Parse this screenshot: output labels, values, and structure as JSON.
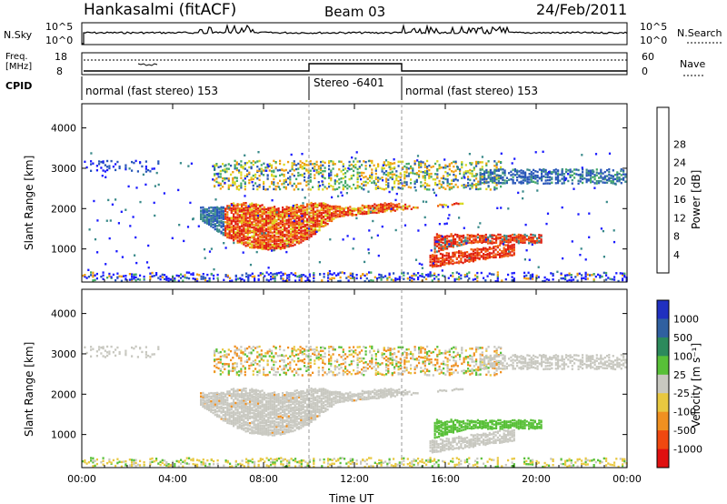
{
  "header": {
    "station": "Hankasalmi (fitACF)",
    "beam": "Beam 03",
    "date": "24/Feb/2011"
  },
  "status_panels": {
    "nsky_label": "N.Sky",
    "nsearch_label": "N.Search",
    "left_ticks": [
      "10^5",
      "10^0"
    ],
    "right_ticks": [
      "10^5",
      "10^0"
    ],
    "freq_label_1": "Freq.",
    "freq_label_2": "[MHz]",
    "freq_ticks": [
      "18",
      "8"
    ],
    "nave_ticks": [
      "60",
      "0"
    ],
    "nave_label": "Nave",
    "cpid_label": "CPID"
  },
  "cpid_segments": [
    {
      "label": "normal (fast stereo) 153",
      "start_h": 0,
      "end_h": 10
    },
    {
      "label": "Stereo -6401",
      "start_h": 10,
      "end_h": 14
    },
    {
      "label": "normal (fast stereo) 153",
      "start_h": 14,
      "end_h": 24
    }
  ],
  "chart_data": [
    {
      "type": "heatmap",
      "quantity": "Power",
      "ylabel": "Slant Range [km]",
      "xlim_hours": [
        0,
        24
      ],
      "ylim": [
        180,
        4600
      ],
      "yticks": [
        1000,
        2000,
        3000,
        4000
      ],
      "colorbar": {
        "label": "Power [dB]",
        "ticks": [
          "4",
          "8",
          "12",
          "16",
          "20",
          "24",
          "28"
        ],
        "colors": [
          "#1a1aff",
          "#2856b8",
          "#3a8a8a",
          "#44aa66",
          "#8cc43c",
          "#d8d820",
          "#f0a010",
          "#f06010",
          "#e02010"
        ]
      }
    },
    {
      "type": "heatmap",
      "quantity": "Velocity",
      "ylabel": "Slant Range [km]",
      "xlabel": "Time UT",
      "xlim_hours": [
        0,
        24
      ],
      "ylim": [
        180,
        4600
      ],
      "yticks": [
        1000,
        2000,
        3000,
        4000
      ],
      "xticks": [
        "00:00",
        "04:00",
        "08:00",
        "12:00",
        "16:00",
        "20:00",
        "00:00"
      ],
      "colorbar": {
        "label": "Velocity [m s⁻¹]",
        "ticks": [
          "1000",
          "500",
          "100",
          "25",
          "-25",
          "-100",
          "-500",
          "-1000"
        ],
        "colors": [
          "#2030c0",
          "#3060a0",
          "#2c8a5c",
          "#58c038",
          "#c8c8c0",
          "#e8c840",
          "#f09020",
          "#f04810",
          "#e01010"
        ]
      }
    }
  ]
}
